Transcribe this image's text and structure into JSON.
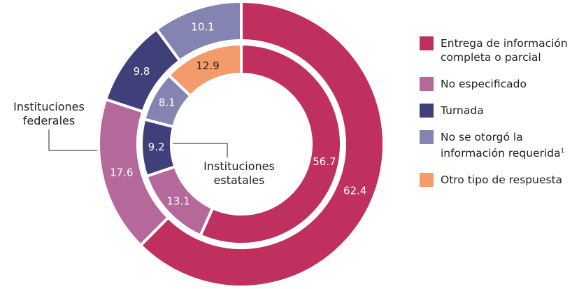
{
  "chart_data": {
    "type": "donut",
    "categories": [
      "Entrega de información completa o parcial",
      "No especificado",
      "Turnada",
      "No se otorgó la información requerida",
      "Otro tipo de respuesta"
    ],
    "colors": [
      "#c0305f",
      "#b5689a",
      "#3f3f7a",
      "#8484b3",
      "#f49b6b"
    ],
    "footnote_marker": "1",
    "series": [
      {
        "name": "Instituciones federales",
        "values": [
          62.4,
          17.6,
          9.8,
          10.1,
          null
        ]
      },
      {
        "name": "Instituciones estatales",
        "values": [
          56.7,
          13.1,
          9.2,
          8.1,
          12.9
        ]
      }
    ]
  }
}
